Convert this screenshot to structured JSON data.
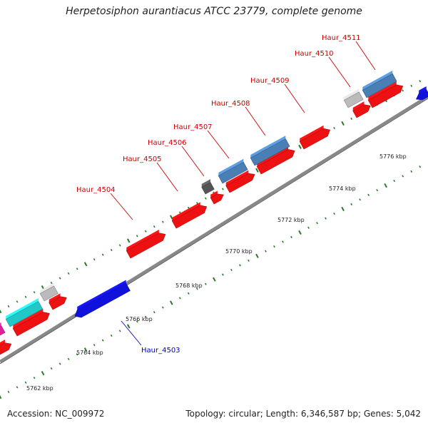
{
  "title": "Herpetosiphon aurantiacus ATCC 23779, complete genome",
  "footer": {
    "accession": "Accession: NC_009972",
    "topology": "Topology: circular; Length: 6,346,587 bp; Genes: 5,042"
  },
  "colors": {
    "backbone": "#888888",
    "ticks": "#2a7a2a",
    "forward_cds": "#ee1111",
    "reverse_cds": "#1111dd",
    "rna_steelblue": "#4a7fb5",
    "cyan": "#22c8c8",
    "pseudo_gray": "#bbbbbb",
    "dark_gray": "#555555",
    "magenta": "#e0209a",
    "label_forward": "#cc0000",
    "label_reverse": "#0000cc"
  },
  "scale_labels": [
    "5762 kbp",
    "5764 kbp",
    "5766 kbp",
    "5768 kbp",
    "5770 kbp",
    "5772 kbp",
    "5774 kbp",
    "5776 kbp"
  ],
  "gene_labels": [
    {
      "text": "Haur_4503",
      "strand": "reverse"
    },
    {
      "text": "Haur_4504",
      "strand": "forward"
    },
    {
      "text": "Haur_4505",
      "strand": "forward"
    },
    {
      "text": "Haur_4506",
      "strand": "forward"
    },
    {
      "text": "Haur_4507",
      "strand": "forward"
    },
    {
      "text": "Haur_4508",
      "strand": "forward"
    },
    {
      "text": "Haur_4509",
      "strand": "forward"
    },
    {
      "text": "Haur_4510",
      "strand": "forward"
    },
    {
      "text": "Haur_4511",
      "strand": "forward"
    }
  ]
}
